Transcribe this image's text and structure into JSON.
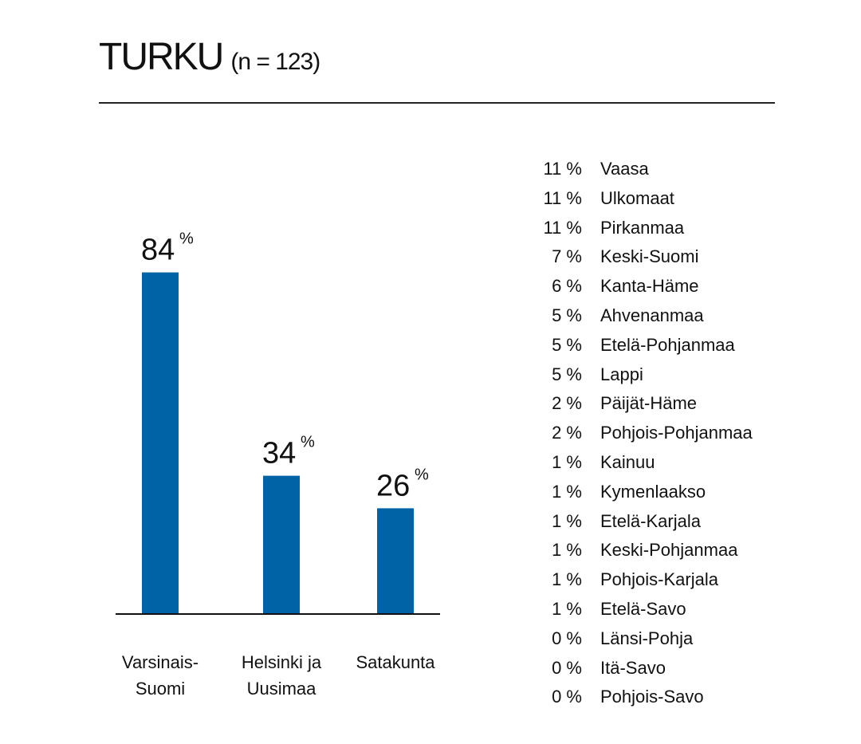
{
  "title": "TURKU",
  "subtitle": "(n = 123)",
  "chart_data": {
    "type": "bar",
    "categories": [
      [
        "Varsinais-",
        "Suomi"
      ],
      [
        "Helsinki ja",
        "Uusimaa"
      ],
      [
        "Satakunta"
      ]
    ],
    "values": [
      84,
      34,
      26
    ],
    "value_labels": [
      "84",
      "34",
      "26"
    ],
    "unit": "%",
    "ylim": [
      0,
      100
    ],
    "bar_color": "#0063a6",
    "other_regions": [
      {
        "pct": "11 %",
        "name": "Vaasa"
      },
      {
        "pct": "11 %",
        "name": "Ulkomaat"
      },
      {
        "pct": "11 %",
        "name": "Pirkanmaa"
      },
      {
        "pct": "7 %",
        "name": "Keski-Suomi"
      },
      {
        "pct": "6 %",
        "name": "Kanta-Häme"
      },
      {
        "pct": "5 %",
        "name": "Ahvenanmaa"
      },
      {
        "pct": "5 %",
        "name": "Etelä-Pohjanmaa"
      },
      {
        "pct": "5 %",
        "name": "Lappi"
      },
      {
        "pct": "2 %",
        "name": "Päijät-Häme"
      },
      {
        "pct": "2 %",
        "name": "Pohjois-Pohjanmaa"
      },
      {
        "pct": "1 %",
        "name": "Kainuu"
      },
      {
        "pct": "1 %",
        "name": "Kymenlaakso"
      },
      {
        "pct": "1 %",
        "name": "Etelä-Karjala"
      },
      {
        "pct": "1 %",
        "name": "Keski-Pohjanmaa"
      },
      {
        "pct": "1 %",
        "name": "Pohjois-Karjala"
      },
      {
        "pct": "1 %",
        "name": "Etelä-Savo"
      },
      {
        "pct": "0 %",
        "name": "Länsi-Pohja"
      },
      {
        "pct": "0 %",
        "name": "Itä-Savo"
      },
      {
        "pct": "0 %",
        "name": "Pohjois-Savo"
      }
    ]
  }
}
